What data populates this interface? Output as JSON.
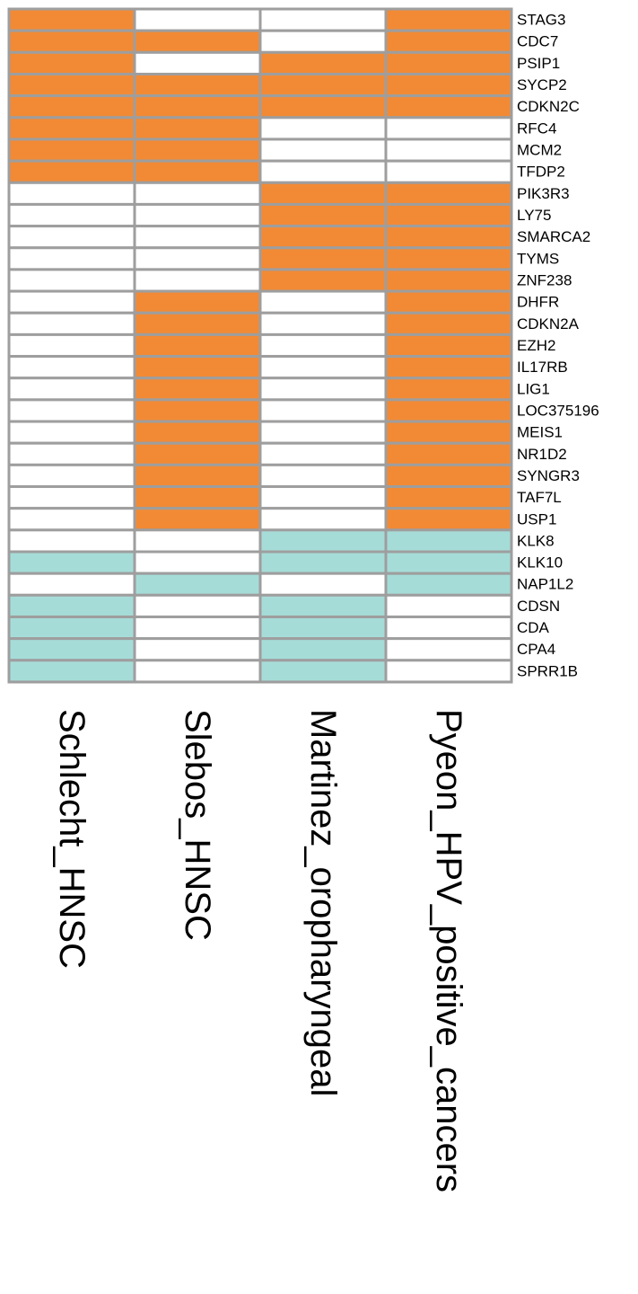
{
  "chart_data": {
    "type": "heatmap",
    "title": "",
    "xlabel": "",
    "ylabel": "",
    "columns": [
      "Schlecht_HNSC",
      "Slebos_HNSC",
      "Martinez_oropharyngeal",
      "Pyeon_HPV_positive_cancers"
    ],
    "rows": [
      "STAG3",
      "CDC7",
      "PSIP1",
      "SYCP2",
      "CDKN2C",
      "RFC4",
      "MCM2",
      "TFDP2",
      "PIK3R3",
      "LY75",
      "SMARCA2",
      "TYMS",
      "ZNF238",
      "DHFR",
      "CDKN2A",
      "EZH2",
      "IL17RB",
      "LIG1",
      "LOC375196",
      "MEIS1",
      "NR1D2",
      "SYNGR3",
      "TAF7L",
      "USP1",
      "KLK8",
      "KLK10",
      "NAP1L2",
      "CDSN",
      "CDA",
      "CPA4",
      "SPRR1B"
    ],
    "values": [
      [
        1,
        0,
        0,
        1
      ],
      [
        1,
        1,
        0,
        1
      ],
      [
        1,
        0,
        1,
        1
      ],
      [
        1,
        1,
        1,
        1
      ],
      [
        1,
        1,
        1,
        1
      ],
      [
        1,
        1,
        0,
        0
      ],
      [
        1,
        1,
        0,
        0
      ],
      [
        1,
        1,
        0,
        0
      ],
      [
        0,
        0,
        1,
        1
      ],
      [
        0,
        0,
        1,
        1
      ],
      [
        0,
        0,
        1,
        1
      ],
      [
        0,
        0,
        1,
        1
      ],
      [
        0,
        0,
        1,
        1
      ],
      [
        0,
        1,
        0,
        1
      ],
      [
        0,
        1,
        0,
        1
      ],
      [
        0,
        1,
        0,
        1
      ],
      [
        0,
        1,
        0,
        1
      ],
      [
        0,
        1,
        0,
        1
      ],
      [
        0,
        1,
        0,
        1
      ],
      [
        0,
        1,
        0,
        1
      ],
      [
        0,
        1,
        0,
        1
      ],
      [
        0,
        1,
        0,
        1
      ],
      [
        0,
        1,
        0,
        1
      ],
      [
        0,
        1,
        0,
        1
      ],
      [
        0,
        0,
        -1,
        -1
      ],
      [
        -1,
        0,
        -1,
        -1
      ],
      [
        0,
        -1,
        0,
        -1
      ],
      [
        -1,
        0,
        -1,
        0
      ],
      [
        -1,
        0,
        -1,
        0
      ],
      [
        -1,
        0,
        -1,
        0
      ],
      [
        -1,
        0,
        -1,
        0
      ]
    ],
    "colors": {
      "up": "#f28a35",
      "down": "#a6dcd8",
      "none": "#ffffff",
      "grid": "#9e9e9e"
    },
    "legend": "none"
  }
}
